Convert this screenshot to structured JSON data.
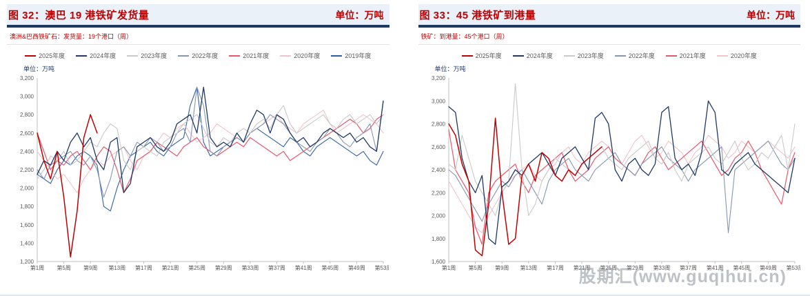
{
  "watermark": "股期汇(www.guqihui.cn)",
  "chart_data": [
    {
      "type": "line",
      "title": "图 32：澳巴 19 港铁矿发货量",
      "unit_label": "单位：万吨",
      "subtitle": "澳洲&巴西铁矿石：发货量：19个港口（周）",
      "y_axis_unit": "单位：万吨",
      "x_ticks": [
        "第1周",
        "第5周",
        "第9周",
        "第13周",
        "第17周",
        "第21周",
        "第25周",
        "第29周",
        "第33周",
        "第37周",
        "第41周",
        "第45周",
        "第49周",
        "第53周"
      ],
      "x_range": [
        1,
        53
      ],
      "ylim": [
        1200,
        3200
      ],
      "y_step": 200,
      "grid": false,
      "legend_position": "top",
      "series": [
        {
          "name": "2025年度",
          "color": "#C00000",
          "width": 1.5,
          "start_week": 1,
          "values": [
            2600,
            2300,
            2100,
            2400,
            1900,
            1250,
            1750,
            2550,
            2800,
            2600
          ]
        },
        {
          "name": "2024年度",
          "color": "#1F3864",
          "width": 1.3,
          "start_week": 1,
          "values": [
            2150,
            2300,
            2250,
            2400,
            2300,
            2500,
            2600,
            2450,
            2550,
            2300,
            2200,
            2500,
            2550,
            1950,
            2050,
            2450,
            2500,
            2550,
            2450,
            2400,
            2500,
            2700,
            2750,
            2800,
            2600,
            3100,
            2550,
            2450,
            2500,
            2450,
            2600,
            2500,
            2700,
            2850,
            2800,
            2600,
            2800,
            2750,
            2600,
            2500,
            2550,
            2450,
            2500,
            2600,
            2650,
            2600,
            2550,
            2600,
            2500,
            2550,
            2450,
            2400,
            2950
          ]
        },
        {
          "name": "2023年度",
          "color": "#C9C9C9",
          "width": 1.1,
          "start_week": 1,
          "values": [
            2100,
            2200,
            2350,
            2300,
            2400,
            2250,
            2300,
            2400,
            2500,
            2450,
            2600,
            2700,
            2650,
            2300,
            2200,
            2400,
            2450,
            2400,
            2350,
            2500,
            2550,
            2600,
            2700,
            2750,
            2800,
            2650,
            2500,
            2450,
            2550,
            2500,
            2600,
            2650,
            2600,
            2700,
            2750,
            2650,
            2800,
            2900,
            2700,
            2600,
            2650,
            2700,
            2750,
            2800,
            2700,
            2650,
            2750,
            2800,
            2700,
            2750,
            2800,
            2700,
            2800
          ]
        },
        {
          "name": "2022年度",
          "color": "#8496B0",
          "width": 1.1,
          "start_week": 1,
          "values": [
            2200,
            2100,
            2250,
            2300,
            2350,
            2400,
            2300,
            2250,
            2350,
            2200,
            1900,
            2100,
            2400,
            2450,
            2350,
            2500,
            2450,
            2550,
            2500,
            2400,
            2450,
            2600,
            2650,
            2500,
            3100,
            2900,
            2400,
            2350,
            2450,
            2500,
            2550,
            2500,
            2600,
            2650,
            2700,
            2800,
            2750,
            2700,
            2600,
            2500,
            2450,
            2400,
            2500,
            2550,
            2650,
            2600,
            2500,
            2450,
            2550,
            2600,
            2700,
            2400,
            2950
          ]
        },
        {
          "name": "2021年度",
          "color": "#E8576B",
          "width": 1.2,
          "start_week": 1,
          "values": [
            2600,
            2400,
            2200,
            2300,
            2250,
            2350,
            2400,
            2300,
            2200,
            2350,
            2450,
            2400,
            2200,
            1950,
            2100,
            2300,
            2350,
            2400,
            2500,
            2450,
            2400,
            2350,
            2450,
            2500,
            2550,
            2450,
            2400,
            2350,
            2400,
            2450,
            2500,
            2450,
            2550,
            2500,
            2450,
            2400,
            2350,
            2400,
            2300,
            2350,
            2400,
            2450,
            2500,
            2550,
            2600,
            2650,
            2700,
            2750,
            2700,
            2600,
            2650,
            2750,
            2800
          ]
        },
        {
          "name": "2020年度",
          "color": "#F2C3CB",
          "width": 1.1,
          "start_week": 1,
          "values": [
            2400,
            2300,
            2200,
            2100,
            2150,
            2050,
            1950,
            2100,
            2200,
            2300,
            2250,
            2350,
            2400,
            2450,
            2300,
            2200,
            2350,
            2400,
            2500,
            2600,
            2550,
            2650,
            2700,
            2600,
            2500,
            2550,
            2600,
            2700,
            2650,
            2600,
            2550,
            2500,
            2600,
            2650,
            2700,
            2750,
            2800,
            2700,
            2650,
            2600,
            2700,
            2750,
            2800,
            2850,
            2700,
            2600,
            2650,
            2700,
            2750,
            2800,
            2750,
            2700,
            2600
          ]
        },
        {
          "name": "2019年度",
          "color": "#2E5FA3",
          "width": 1.1,
          "start_week": 1,
          "values": [
            2150,
            2100,
            2050,
            2200,
            2300,
            2250,
            2350,
            2400,
            2350,
            2250,
            1800,
            1750,
            2000,
            2200,
            2350,
            2400,
            2450,
            2500,
            2400,
            2350,
            2450,
            2500,
            2550,
            2900,
            3100,
            2500,
            2350,
            2400,
            2450,
            2500,
            2550,
            2500,
            2600,
            2650,
            2600,
            2550,
            2500,
            2450,
            2550,
            2500,
            2400,
            2350,
            2450,
            2500,
            2550,
            2500,
            2450,
            2400,
            2350,
            2400,
            2300,
            2250,
            2400
          ]
        }
      ]
    },
    {
      "type": "line",
      "title": "图 33：45 港铁矿到港量",
      "unit_label": "单位：万吨",
      "subtitle": "铁矿：到港量：45个港口（周）",
      "y_axis_unit": "单位：万吨",
      "x_ticks": [
        "第1周",
        "第5周",
        "第9周",
        "第13周",
        "第17周",
        "第21周",
        "第25周",
        "第29周",
        "第33周",
        "第37周",
        "第41周",
        "第45周",
        "第49周",
        "第53周"
      ],
      "x_range": [
        1,
        53
      ],
      "ylim": [
        1600,
        3200
      ],
      "y_step": 200,
      "grid": false,
      "legend_position": "top",
      "series": [
        {
          "name": "2025年度",
          "color": "#C00000",
          "width": 1.5,
          "start_week": 1,
          "values": [
            2800,
            2700,
            2450,
            2300,
            1700,
            1650,
            2100,
            2850,
            2200,
            1750,
            1800,
            2350,
            2450,
            2300,
            2550,
            2500,
            2350,
            2300,
            2400,
            2350,
            2450,
            2500,
            2550,
            2600
          ]
        },
        {
          "name": "2024年度",
          "color": "#1F3864",
          "width": 1.3,
          "start_week": 1,
          "values": [
            2950,
            2900,
            2500,
            2300,
            2200,
            2350,
            1800,
            1750,
            2250,
            2300,
            2400,
            2350,
            2450,
            2500,
            2550,
            2450,
            2350,
            2500,
            2550,
            2600,
            2500,
            2400,
            2850,
            2900,
            2800,
            2400,
            2300,
            2450,
            2500,
            2400,
            2350,
            2450,
            2900,
            2950,
            2500,
            2400,
            2450,
            2350,
            2550,
            3000,
            2900,
            2400,
            2350,
            2450,
            2500,
            2550,
            2450,
            2400,
            2350,
            2300,
            2250,
            2200,
            2500
          ]
        },
        {
          "name": "2023年度",
          "color": "#C9C9C9",
          "width": 1.1,
          "start_week": 1,
          "values": [
            2450,
            2400,
            2700,
            2500,
            2300,
            2200,
            2100,
            2000,
            2200,
            2300,
            3150,
            2400,
            2000,
            2100,
            2300,
            2400,
            2500,
            2450,
            2400,
            2350,
            2450,
            2500,
            2550,
            2600,
            2500,
            2450,
            2400,
            2500,
            2550,
            2600,
            2650,
            2500,
            2450,
            2550,
            2400,
            2300,
            2450,
            2500,
            2550,
            2600,
            2500,
            2450,
            2550,
            2650,
            2500,
            2400,
            2450,
            2550,
            2500,
            2600,
            2700,
            2400,
            2800
          ]
        },
        {
          "name": "2022年度",
          "color": "#8496B0",
          "width": 1.1,
          "start_week": 1,
          "values": [
            2400,
            2350,
            2250,
            2150,
            2050,
            1950,
            2100,
            2200,
            2300,
            2250,
            2350,
            2400,
            2300,
            2200,
            2100,
            2300,
            2400,
            2450,
            2500,
            2400,
            2350,
            2300,
            2400,
            2450,
            2500,
            2550,
            2450,
            2400,
            2350,
            2450,
            2500,
            2550,
            2600,
            2500,
            2450,
            2400,
            2300,
            2400,
            2450,
            2500,
            2550,
            2600,
            1850,
            2400,
            2450,
            2500,
            2550,
            2600,
            2650,
            2550,
            2450,
            2400,
            2500
          ]
        },
        {
          "name": "2021年度",
          "color": "#E8576B",
          "width": 1.2,
          "start_week": 1,
          "values": [
            2750,
            2400,
            2300,
            2200,
            1900,
            1750,
            2200,
            2300,
            2350,
            2400,
            2450,
            2300,
            2200,
            2350,
            2400,
            2450,
            2500,
            2550,
            2400,
            2300,
            2350,
            2400,
            2500,
            2550,
            2600,
            2500,
            2450,
            2400,
            2350,
            2450,
            2550,
            2600,
            2500,
            2400,
            2450,
            2500,
            2550,
            2600,
            2650,
            2550,
            2450,
            2350,
            2400,
            2500,
            2550,
            2650,
            2550,
            2400,
            2300,
            2200,
            2100,
            2400,
            2550
          ]
        },
        {
          "name": "2020年度",
          "color": "#F2C3CB",
          "width": 1.1,
          "start_week": 1,
          "values": [
            2300,
            2200,
            2100,
            2000,
            1900,
            1850,
            2000,
            2100,
            2200,
            2300,
            2350,
            2400,
            2450,
            2350,
            2300,
            2400,
            2450,
            2550,
            2600,
            2500,
            2450,
            2550,
            2600,
            2650,
            2600,
            2500,
            2450,
            2550,
            2650,
            2700,
            2600,
            2500,
            2550,
            2650,
            2600,
            2550,
            2450,
            2550,
            2600,
            2700,
            2650,
            2600,
            2500,
            2550,
            2650,
            2600,
            2550,
            2600,
            2650,
            2600,
            2550,
            2500,
            2600
          ]
        }
      ]
    }
  ]
}
